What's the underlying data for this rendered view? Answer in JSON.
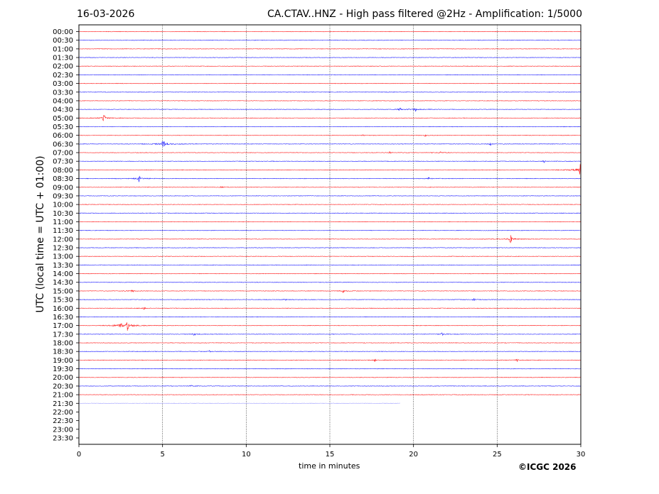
{
  "header": {
    "date": "16-03-2026",
    "title": "CA.CTAV..HNZ - High pass filtered @2Hz - Amplification: 1/5000"
  },
  "footer": {
    "copyright": "©ICGC 2026"
  },
  "chart_data": {
    "type": "line",
    "title": "CA.CTAV..HNZ - High pass filtered @2Hz - Amplification: 1/5000",
    "xlabel": "time in minutes",
    "ylabel": "UTC (local time = UTC + 01:00)",
    "xlim": [
      0,
      30
    ],
    "x_ticks": [
      "0",
      "5",
      "10",
      "15",
      "20",
      "25",
      "30"
    ],
    "y_ticks": [
      "00:00",
      "00:30",
      "01:00",
      "01:30",
      "02:00",
      "02:30",
      "03:00",
      "03:30",
      "04:00",
      "04:30",
      "05:00",
      "05:30",
      "06:00",
      "06:30",
      "07:00",
      "07:30",
      "08:00",
      "08:30",
      "09:00",
      "09:30",
      "10:00",
      "10:30",
      "11:00",
      "11:30",
      "12:00",
      "12:30",
      "13:00",
      "13:30",
      "14:00",
      "14:30",
      "15:00",
      "15:30",
      "16:00",
      "16:30",
      "17:00",
      "17:30",
      "18:00",
      "18:30",
      "19:00",
      "19:30",
      "20:00",
      "20:30",
      "21:00",
      "21:30",
      "22:00",
      "22:30",
      "23:00",
      "23:30"
    ],
    "grid": "vertical dotted lines at x ticks",
    "colors": {
      "even_rows": "#ff0000",
      "odd_rows": "#0000ff"
    },
    "last_trace": {
      "row": "21:30",
      "end_minute": 19.2
    },
    "events": [
      {
        "row": "04:30",
        "minute": 19.2,
        "amp": 2
      },
      {
        "row": "04:30",
        "minute": 20.1,
        "amp": 2.5
      },
      {
        "row": "05:00",
        "minute": 1.5,
        "amp": 5
      },
      {
        "row": "06:00",
        "minute": 17.0,
        "amp": 1
      },
      {
        "row": "06:00",
        "minute": 20.7,
        "amp": 1
      },
      {
        "row": "06:30",
        "minute": 5.05,
        "amp": 8
      },
      {
        "row": "06:30",
        "minute": 24.6,
        "amp": 1.5
      },
      {
        "row": "07:00",
        "minute": 18.6,
        "amp": 1
      },
      {
        "row": "07:00",
        "minute": 21.6,
        "amp": 1
      },
      {
        "row": "07:30",
        "minute": 27.8,
        "amp": 1.5
      },
      {
        "row": "08:00",
        "minute": 30.0,
        "amp": 12
      },
      {
        "row": "08:30",
        "minute": 3.6,
        "amp": 4
      },
      {
        "row": "08:30",
        "minute": 20.9,
        "amp": 1.2
      },
      {
        "row": "09:00",
        "minute": 8.5,
        "amp": 1
      },
      {
        "row": "12:00",
        "minute": 25.8,
        "amp": 6
      },
      {
        "row": "15:00",
        "minute": 3.2,
        "amp": 2
      },
      {
        "row": "15:00",
        "minute": 15.8,
        "amp": 2
      },
      {
        "row": "15:30",
        "minute": 12.3,
        "amp": 1.5
      },
      {
        "row": "15:30",
        "minute": 23.6,
        "amp": 1.5
      },
      {
        "row": "16:00",
        "minute": 3.9,
        "amp": 1.2
      },
      {
        "row": "17:00",
        "minute": 2.5,
        "amp": 4
      },
      {
        "row": "17:00",
        "minute": 2.9,
        "amp": 8
      },
      {
        "row": "17:30",
        "minute": 6.9,
        "amp": 1.5
      },
      {
        "row": "17:30",
        "minute": 21.7,
        "amp": 1.5
      },
      {
        "row": "18:30",
        "minute": 7.8,
        "amp": 1
      },
      {
        "row": "19:00",
        "minute": 17.7,
        "amp": 1.5
      },
      {
        "row": "19:00",
        "minute": 26.2,
        "amp": 1.5
      },
      {
        "row": "20:30",
        "minute": 6.7,
        "amp": 1.2
      }
    ]
  }
}
